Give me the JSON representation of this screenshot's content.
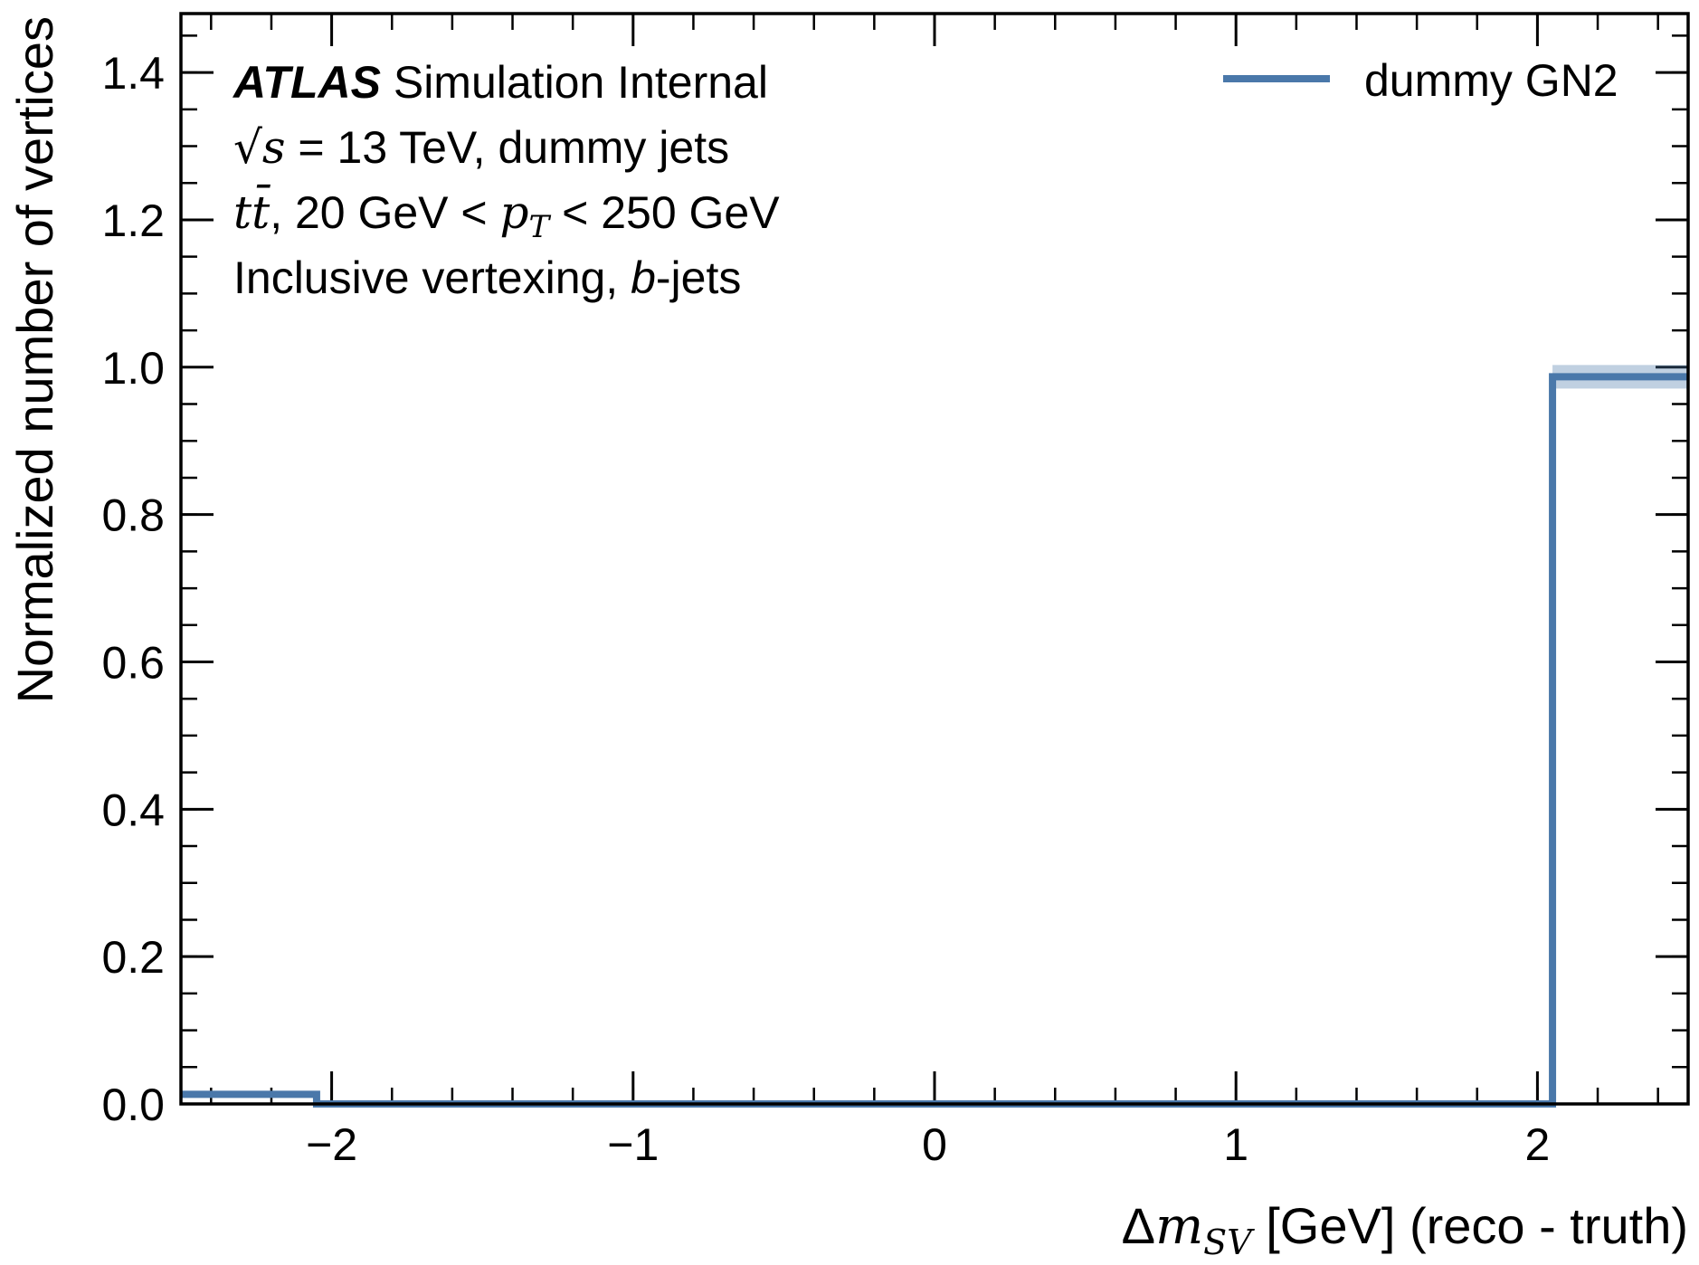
{
  "chart_data": {
    "type": "histogram",
    "xlim": [
      -2.5,
      2.5
    ],
    "ylim": [
      0,
      1.48
    ],
    "x_ticks": [
      {
        "value": -2,
        "label": "−2"
      },
      {
        "value": -1,
        "label": "−1"
      },
      {
        "value": 0,
        "label": "0"
      },
      {
        "value": 1,
        "label": "1"
      },
      {
        "value": 2,
        "label": "2"
      }
    ],
    "y_ticks": [
      {
        "value": 0.0,
        "label": "0.0"
      },
      {
        "value": 0.2,
        "label": "0.2"
      },
      {
        "value": 0.4,
        "label": "0.4"
      },
      {
        "value": 0.6,
        "label": "0.6"
      },
      {
        "value": 0.8,
        "label": "0.8"
      },
      {
        "value": 1.0,
        "label": "1.0"
      },
      {
        "value": 1.2,
        "label": "1.2"
      },
      {
        "value": 1.4,
        "label": "1.4"
      }
    ],
    "x_minor_step": 0.2,
    "y_minor_step": 0.05,
    "xlabel": {
      "prefix": "Δ",
      "var": "m",
      "sub": "SV",
      "suffix": " [GeV] (reco - truth)"
    },
    "ylabel": "Normalized number of vertices",
    "series": [
      {
        "name": "dummy GN2",
        "color": "#4a78aa",
        "band_color": "#4a78aa",
        "bins": [
          {
            "x0": -2.5,
            "x1": -2.05,
            "y": 0.013,
            "err": 0.004
          },
          {
            "x0": -2.05,
            "x1": 2.05,
            "y": 0.0,
            "err": 0.0
          },
          {
            "x0": 2.05,
            "x1": 2.5,
            "y": 0.987,
            "err": 0.016
          }
        ]
      }
    ],
    "legend_placement": "top-right",
    "annotations": {
      "atlas": "ATLAS",
      "atlas_suffix": " Simulation Internal",
      "line2_math": "√s",
      "line2_rest": " = 13 TeV, dummy jets",
      "line3_ttbar": "tt̄",
      "line3_mid": ", 20 GeV  < ",
      "line3_pt": "p",
      "line3_pt_sub": "T",
      "line3_end": " < 250 GeV",
      "line4_pre": "Inclusive vertexing, ",
      "line4_b": "b",
      "line4_post": "-jets"
    }
  }
}
